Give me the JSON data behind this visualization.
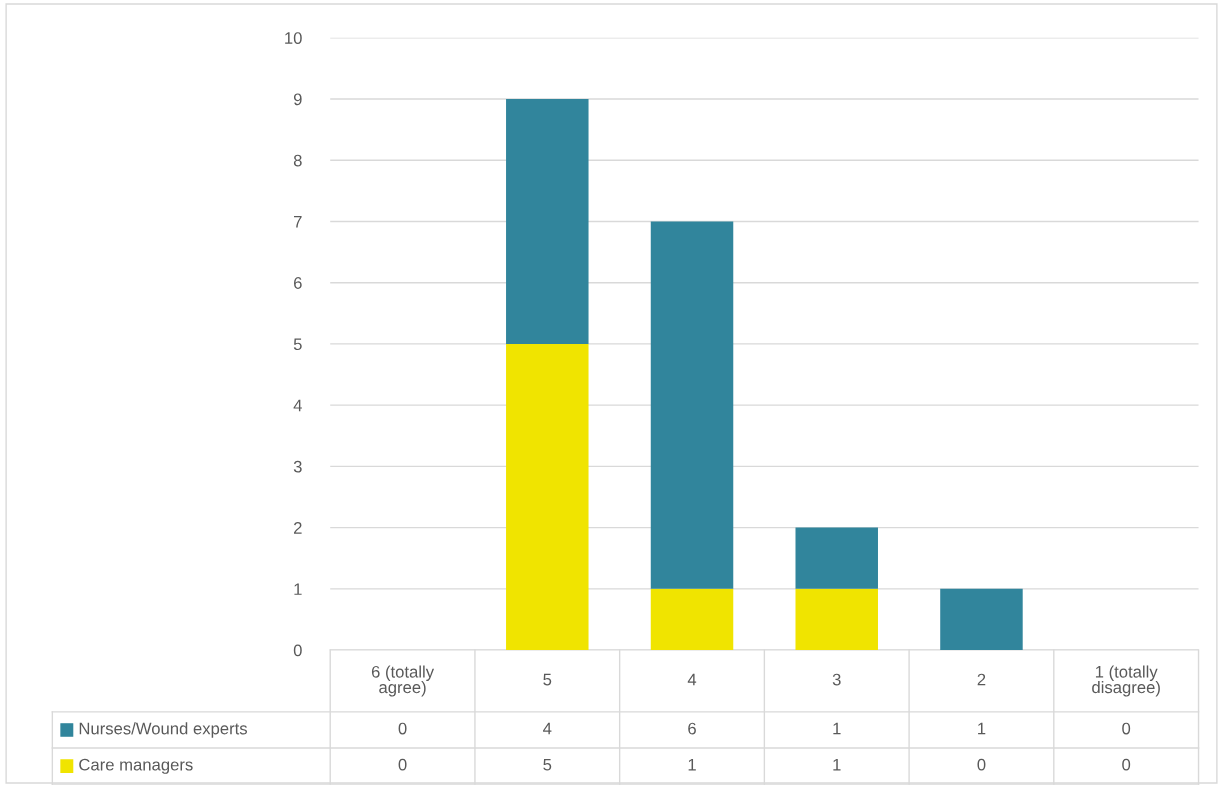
{
  "chart_data": {
    "type": "bar",
    "stacked": true,
    "categories": [
      "6 (totally\nagree)",
      "5",
      "4",
      "3",
      "2",
      "1 (totally\ndisagree)"
    ],
    "series": [
      {
        "name": "Care managers",
        "color": "#f0e400",
        "values": [
          0,
          5,
          1,
          1,
          0,
          0
        ]
      },
      {
        "name": "Nurses/Wound experts",
        "color": "#31859c",
        "values": [
          0,
          4,
          6,
          1,
          1,
          0
        ]
      }
    ],
    "ylim": [
      0,
      10
    ],
    "yticks": [
      0,
      1,
      2,
      3,
      4,
      5,
      6,
      7,
      8,
      9,
      10
    ],
    "grid": "y",
    "data_labels": true,
    "legend": "bottom"
  }
}
